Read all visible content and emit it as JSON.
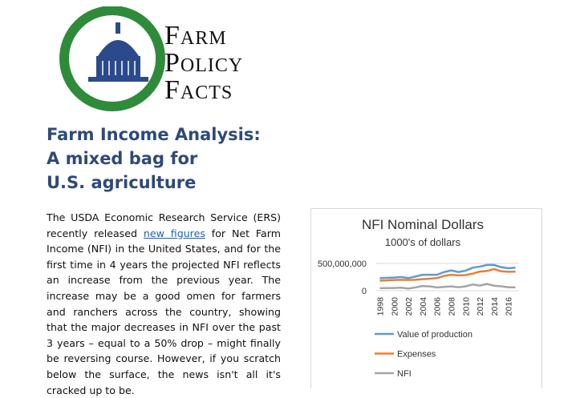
{
  "logo": {
    "lines": [
      "Farm",
      "Policy",
      "Facts"
    ]
  },
  "article": {
    "title_lines": [
      "Farm Income Analysis:",
      "A mixed bag for",
      "U.S. agriculture"
    ],
    "body_before_link": "The USDA Economic Research Service (ERS) recently released",
    "link": "new figures",
    "body_after_link": "for Net Farm Income (NFI) in the United States, and for the first time in 4 years the projected NFI reflects an increase from the previous year.  The increase may be a good omen for farmers and ranchers across the country, showing that the major decreases in NFI over the past 3 years – equal to a 50% drop – might finally be reversing course. However, if you scratch below the surface, the news isn't all it's cracked up to be."
  },
  "chart_data": {
    "type": "line",
    "title": "NFI Nominal Dollars",
    "subtitle": "1000's of dollars",
    "categories": [
      "1998",
      null,
      "2000",
      null,
      "2002",
      null,
      "2004",
      null,
      "2006",
      null,
      "2008",
      null,
      "2010",
      null,
      "2012",
      null,
      "2014",
      null,
      "2016",
      null
    ],
    "series": [
      {
        "name": "Value of production",
        "color": "#5b9bd5",
        "values": [
          230000000,
          235000000,
          240000000,
          250000000,
          230000000,
          260000000,
          290000000,
          290000000,
          290000000,
          340000000,
          370000000,
          340000000,
          365000000,
          420000000,
          440000000,
          470000000,
          470000000,
          430000000,
          410000000,
          420000000
        ]
      },
      {
        "name": "Expenses",
        "color": "#ed7d31",
        "values": [
          185000000,
          188000000,
          195000000,
          200000000,
          195000000,
          200000000,
          210000000,
          220000000,
          230000000,
          270000000,
          290000000,
          280000000,
          285000000,
          310000000,
          350000000,
          360000000,
          395000000,
          355000000,
          345000000,
          350000000
        ]
      },
      {
        "name": "NFI",
        "color": "#a5a5a5",
        "values": [
          45000000,
          47000000,
          50000000,
          55000000,
          38000000,
          60000000,
          85000000,
          78000000,
          58000000,
          70000000,
          78000000,
          62000000,
          79000000,
          113000000,
          93000000,
          123000000,
          92000000,
          81000000,
          62000000,
          63000000
        ]
      }
    ],
    "ylim": [
      0,
      600000000
    ],
    "yticks": [
      0,
      {
        "value": 500000000,
        "label": "500,000,000"
      }
    ],
    "grid": true
  }
}
